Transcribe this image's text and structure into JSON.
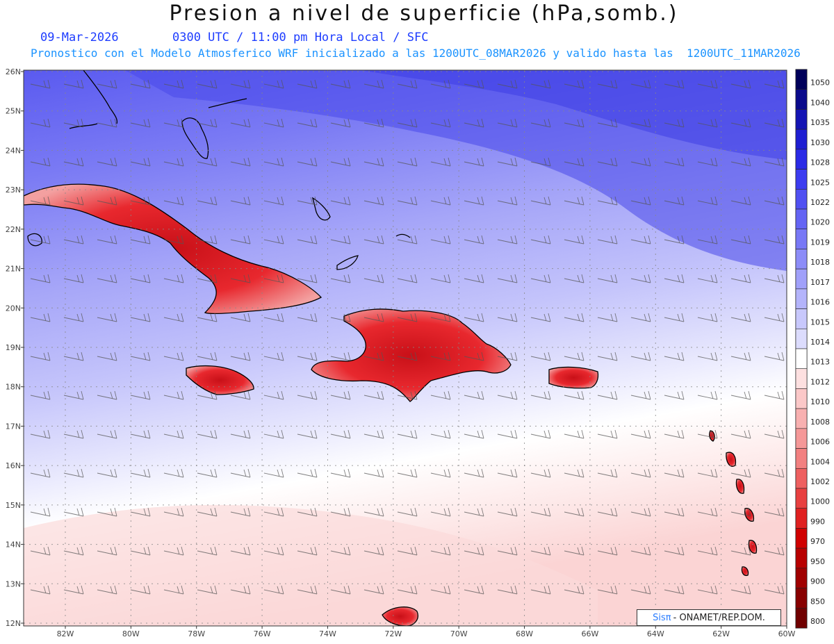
{
  "header": {
    "title": "Presion a nivel de superficie (hPa,somb.)",
    "date": "09-Mar-2026",
    "time_line": "0300 UTC / 11:00 pm Hora Local / SFC",
    "model_line": "Pronostico con el Modelo Atmosferico WRF inicializado a las 1200UTC_08MAR2026 y valido hasta las  1200UTC_11MAR2026"
  },
  "axes": {
    "lat_labels": [
      "26N",
      "25N",
      "24N",
      "23N",
      "22N",
      "21N",
      "20N",
      "19N",
      "18N",
      "17N",
      "16N",
      "15N",
      "14N",
      "13N",
      "12N"
    ],
    "lon_labels": [
      "82W",
      "80W",
      "78W",
      "76W",
      "74W",
      "72W",
      "70W",
      "68W",
      "66W",
      "64W",
      "62W",
      "60W"
    ]
  },
  "colorbar": {
    "levels": [
      "1050",
      "1040",
      "1035",
      "1030",
      "1028",
      "1025",
      "1022",
      "1020",
      "1019",
      "1018",
      "1017",
      "1016",
      "1015",
      "1014",
      "1013",
      "1012",
      "1010",
      "1008",
      "1006",
      "1004",
      "1002",
      "1000",
      "990",
      "970",
      "950",
      "900",
      "850",
      "800"
    ],
    "colors": [
      "#00005a",
      "#0a0a8c",
      "#1414b4",
      "#1e1ed2",
      "#2a2ae6",
      "#3c3cf0",
      "#5050f2",
      "#6464f4",
      "#7878f6",
      "#8c8cf8",
      "#a0a0fa",
      "#b4b4fb",
      "#c8c8fc",
      "#dcdcfd",
      "#ffffff",
      "#fde0e0",
      "#fbc8c8",
      "#f8b0b0",
      "#f59898",
      "#f28080",
      "#ee6060",
      "#e84040",
      "#e02020",
      "#d00000",
      "#b80000",
      "#a00000",
      "#880000",
      "#700000"
    ]
  },
  "credit": {
    "brand": "Sisπ",
    "text": "- ONAMET/REP.DOM."
  },
  "colors": {
    "land_high": "#e8202a",
    "coast": "#000000",
    "grid": "#888888"
  }
}
